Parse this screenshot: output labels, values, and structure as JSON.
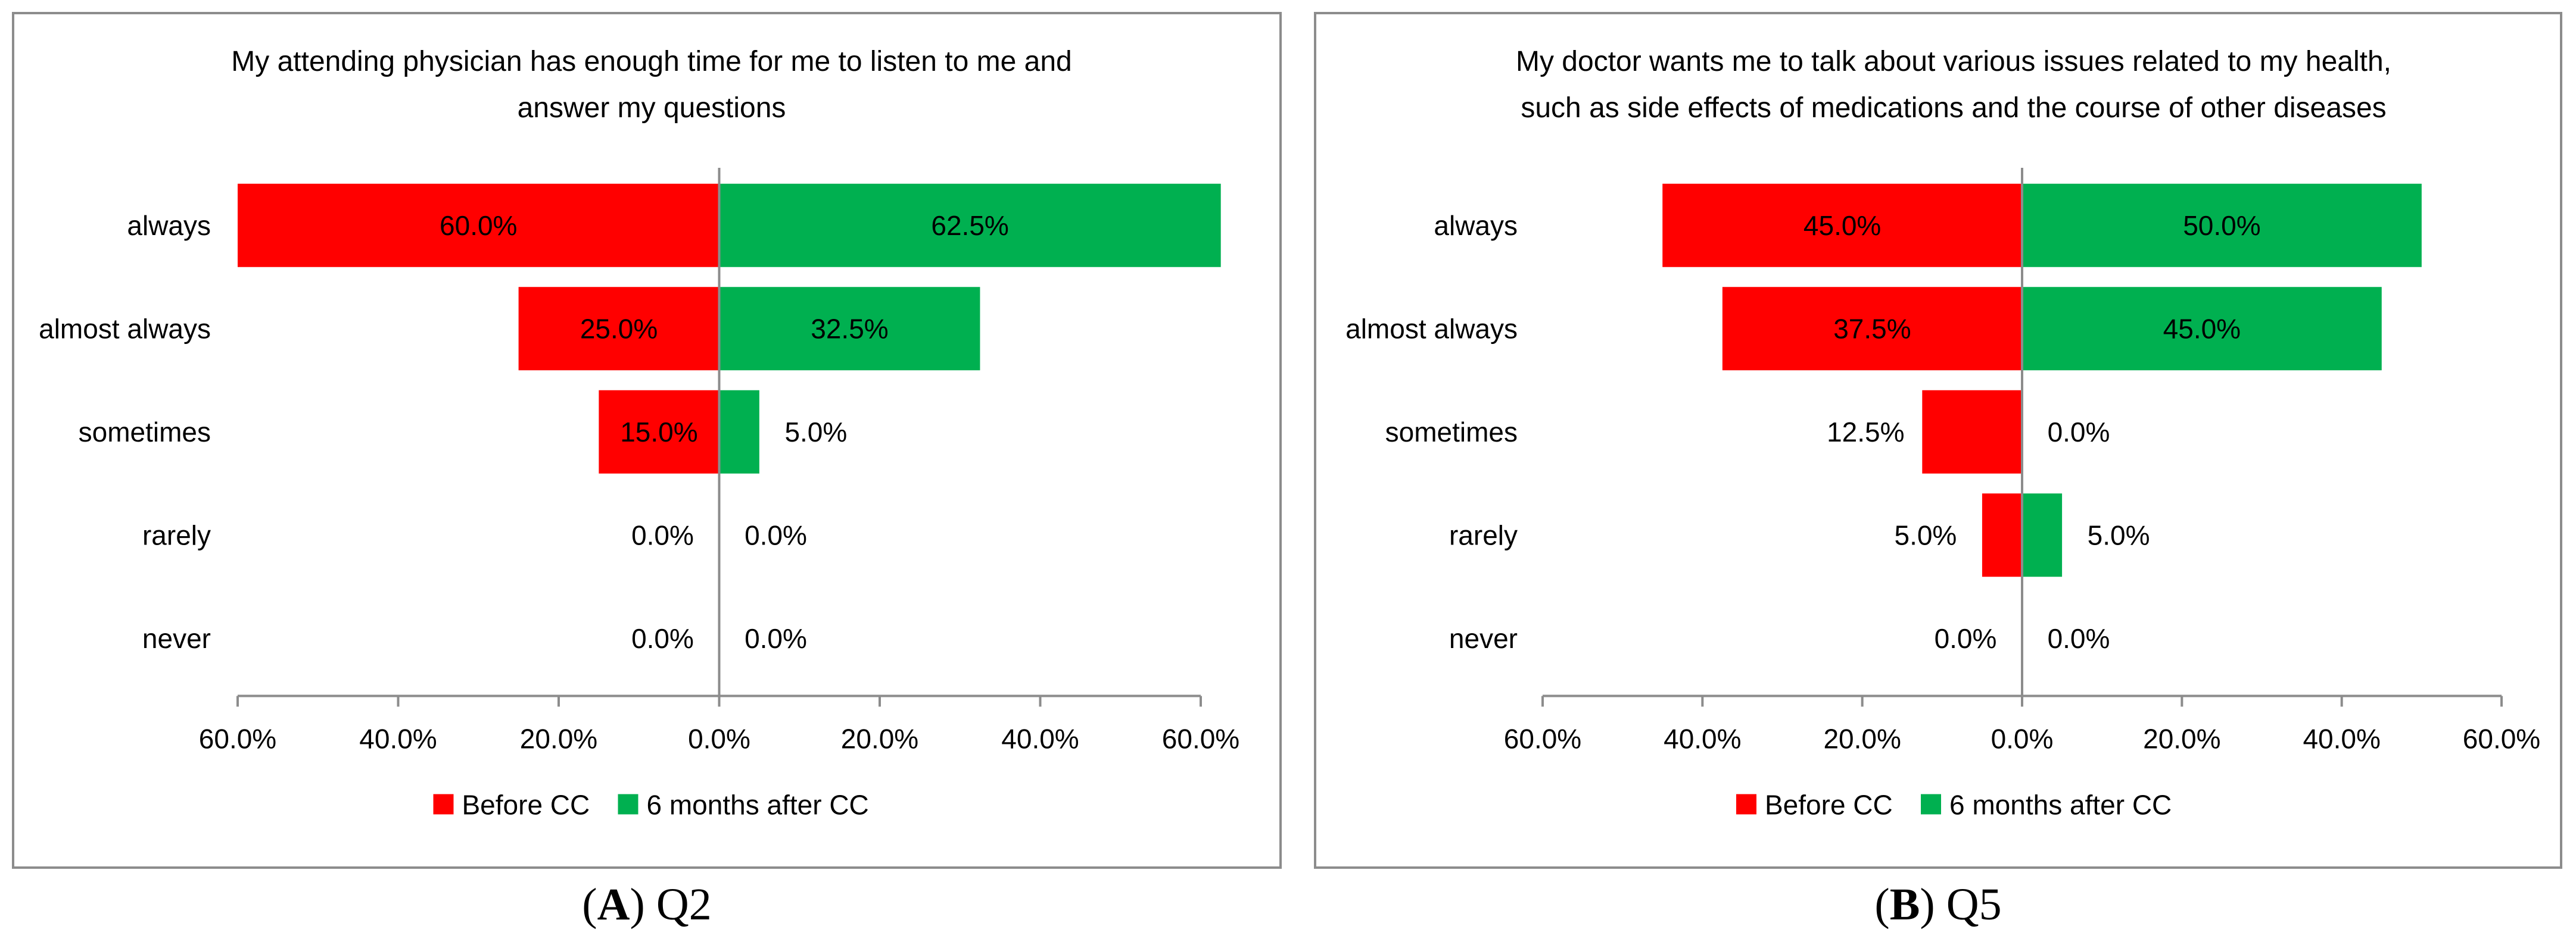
{
  "colors": {
    "before": "#ff0000",
    "after": "#00b050",
    "axis": "#8c8c8c",
    "text": "#000000"
  },
  "legend": {
    "before_label": "Before CC",
    "after_label": "6 months after CC"
  },
  "captions": [
    {
      "letter": "A",
      "open": "(",
      "close": ")",
      "text": " Q2"
    },
    {
      "letter": "B",
      "open": "(",
      "close": ")",
      "text": " Q5"
    }
  ],
  "chart_data": [
    {
      "type": "bar",
      "orientation": "horizontal-diverging",
      "title_lines": [
        "My attending physician has enough time for me to listen to me and",
        "answer my questions"
      ],
      "categories": [
        "always",
        "almost always",
        "sometimes",
        "rarely",
        "never"
      ],
      "series": [
        {
          "name": "Before CC",
          "values": [
            60.0,
            25.0,
            15.0,
            0.0,
            0.0
          ],
          "side": "left"
        },
        {
          "name": "6 months after CC",
          "values": [
            62.5,
            32.5,
            5.0,
            0.0,
            0.0
          ],
          "side": "right"
        }
      ],
      "data_labels": {
        "before": [
          "60.0%",
          "25.0%",
          "15.0%",
          "0.0%",
          "0.0%"
        ],
        "after": [
          "62.5%",
          "32.5%",
          "5.0%",
          "0.0%",
          "0.0%"
        ]
      },
      "xlim": [
        -60,
        60
      ],
      "xticks": [
        -60,
        -40,
        -20,
        0,
        20,
        40,
        60
      ],
      "xtick_labels": [
        "60.0%",
        "40.0%",
        "20.0%",
        "0.0%",
        "20.0%",
        "40.0%",
        "60.0%"
      ],
      "legend_position": "bottom"
    },
    {
      "type": "bar",
      "orientation": "horizontal-diverging",
      "title_lines": [
        "My doctor wants me to talk about various issues related to my health,",
        "such as side effects of medications and the course of other diseases"
      ],
      "categories": [
        "always",
        "almost always",
        "sometimes",
        "rarely",
        "never"
      ],
      "series": [
        {
          "name": "Before CC",
          "values": [
            45.0,
            37.5,
            12.5,
            5.0,
            0.0
          ],
          "side": "left"
        },
        {
          "name": "6 months after CC",
          "values": [
            50.0,
            45.0,
            0.0,
            5.0,
            0.0
          ],
          "side": "right"
        }
      ],
      "data_labels": {
        "before": [
          "45.0%",
          "37.5%",
          "12.5%",
          "5.0%",
          "0.0%"
        ],
        "after": [
          "50.0%",
          "45.0%",
          "0.0%",
          "5.0%",
          "0.0%"
        ]
      },
      "xlim": [
        -60,
        60
      ],
      "xticks": [
        -60,
        -40,
        -20,
        0,
        20,
        40,
        60
      ],
      "xtick_labels": [
        "60.0%",
        "40.0%",
        "20.0%",
        "0.0%",
        "20.0%",
        "40.0%",
        "60.0%"
      ],
      "legend_position": "bottom"
    }
  ]
}
